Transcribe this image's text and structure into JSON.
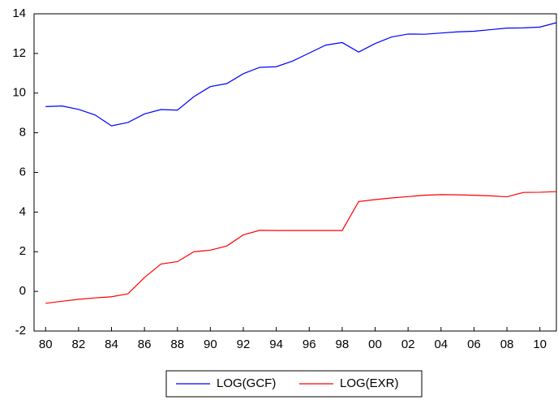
{
  "chart_data": {
    "type": "line",
    "x": [
      1980,
      1981,
      1982,
      1983,
      1984,
      1985,
      1986,
      1987,
      1988,
      1989,
      1990,
      1991,
      1992,
      1993,
      1994,
      1995,
      1996,
      1997,
      1998,
      1999,
      2000,
      2001,
      2002,
      2003,
      2004,
      2005,
      2006,
      2007,
      2008,
      2009,
      2010,
      2011
    ],
    "series": [
      {
        "name": "LOG(GCF)",
        "color": "#0000ff",
        "values": [
          9.32,
          9.35,
          9.18,
          8.9,
          8.35,
          8.52,
          8.95,
          9.17,
          9.14,
          9.82,
          10.33,
          10.48,
          10.98,
          11.3,
          11.33,
          11.62,
          12.02,
          12.42,
          12.55,
          12.07,
          12.5,
          12.83,
          12.98,
          12.97,
          13.03,
          13.09,
          13.12,
          13.2,
          13.28,
          13.29,
          13.33,
          13.55
        ]
      },
      {
        "name": "LOG(EXR)",
        "color": "#ff0000",
        "values": [
          -0.6,
          -0.5,
          -0.4,
          -0.33,
          -0.27,
          -0.12,
          0.7,
          1.38,
          1.5,
          2.0,
          2.08,
          2.29,
          2.85,
          3.08,
          3.07,
          3.07,
          3.07,
          3.07,
          3.07,
          4.53,
          4.63,
          4.71,
          4.78,
          4.85,
          4.88,
          4.87,
          4.85,
          4.82,
          4.77,
          4.99,
          5.0,
          5.03
        ]
      }
    ],
    "xlim": [
      1979.3,
      2011
    ],
    "xticks": [
      {
        "value": 1980,
        "label": "80"
      },
      {
        "value": 1982,
        "label": "82"
      },
      {
        "value": 1984,
        "label": "84"
      },
      {
        "value": 1986,
        "label": "86"
      },
      {
        "value": 1988,
        "label": "88"
      },
      {
        "value": 1990,
        "label": "90"
      },
      {
        "value": 1992,
        "label": "92"
      },
      {
        "value": 1994,
        "label": "94"
      },
      {
        "value": 1996,
        "label": "96"
      },
      {
        "value": 1998,
        "label": "98"
      },
      {
        "value": 2000,
        "label": "00"
      },
      {
        "value": 2002,
        "label": "02"
      },
      {
        "value": 2004,
        "label": "04"
      },
      {
        "value": 2006,
        "label": "06"
      },
      {
        "value": 2008,
        "label": "08"
      },
      {
        "value": 2010,
        "label": "10"
      }
    ],
    "ylim": [
      -2,
      14
    ],
    "yticks": [
      -2,
      0,
      2,
      4,
      6,
      8,
      10,
      12,
      14
    ],
    "grid": false,
    "legend": "bottom"
  }
}
